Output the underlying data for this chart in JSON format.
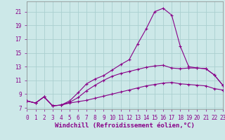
{
  "xlabel": "Windchill (Refroidissement éolien,°C)",
  "background_color": "#cce8e8",
  "grid_color": "#aad0d0",
  "line_color": "#880088",
  "xlim": [
    0,
    23
  ],
  "ylim": [
    6.8,
    22.5
  ],
  "xticks": [
    0,
    1,
    2,
    3,
    4,
    5,
    6,
    7,
    8,
    9,
    10,
    11,
    12,
    13,
    14,
    15,
    16,
    17,
    18,
    19,
    20,
    21,
    22,
    23
  ],
  "yticks": [
    7,
    9,
    11,
    13,
    15,
    17,
    19,
    21
  ],
  "line_flat_x": [
    0,
    1,
    2,
    3,
    4,
    5,
    6,
    7,
    8,
    9,
    10,
    11,
    12,
    13,
    14,
    15,
    16,
    17,
    18,
    19,
    20,
    21,
    22,
    23
  ],
  "line_flat_y": [
    8.0,
    7.7,
    8.6,
    7.3,
    7.4,
    7.7,
    7.9,
    8.1,
    8.4,
    8.7,
    9.0,
    9.3,
    9.6,
    9.9,
    10.2,
    10.4,
    10.6,
    10.7,
    10.5,
    10.4,
    10.3,
    10.2,
    9.8,
    9.6
  ],
  "line_mid_x": [
    0,
    1,
    2,
    3,
    4,
    5,
    6,
    7,
    8,
    9,
    10,
    11,
    12,
    13,
    14,
    15,
    16,
    17,
    18,
    19,
    20,
    21,
    22,
    23
  ],
  "line_mid_y": [
    8.0,
    7.7,
    8.6,
    7.3,
    7.4,
    7.8,
    8.5,
    9.5,
    10.3,
    11.0,
    11.6,
    12.0,
    12.3,
    12.6,
    12.9,
    13.1,
    13.2,
    12.8,
    12.7,
    12.8,
    12.8,
    12.7,
    11.8,
    10.3
  ],
  "line_peak_x": [
    0,
    1,
    2,
    3,
    4,
    5,
    6,
    7,
    8,
    9,
    10,
    11,
    12,
    13,
    14,
    15,
    16,
    17,
    18,
    19,
    20,
    21,
    22,
    23
  ],
  "line_peak_y": [
    8.0,
    7.7,
    8.6,
    7.3,
    7.4,
    8.0,
    9.2,
    10.5,
    11.2,
    11.7,
    12.5,
    13.3,
    14.0,
    16.3,
    18.5,
    21.0,
    21.5,
    20.5,
    16.0,
    13.0,
    12.8,
    12.7,
    11.8,
    10.3
  ],
  "xlabel_fontsize": 6.5,
  "tick_fontsize": 5.5,
  "markersize": 2.0,
  "linewidth": 0.8
}
